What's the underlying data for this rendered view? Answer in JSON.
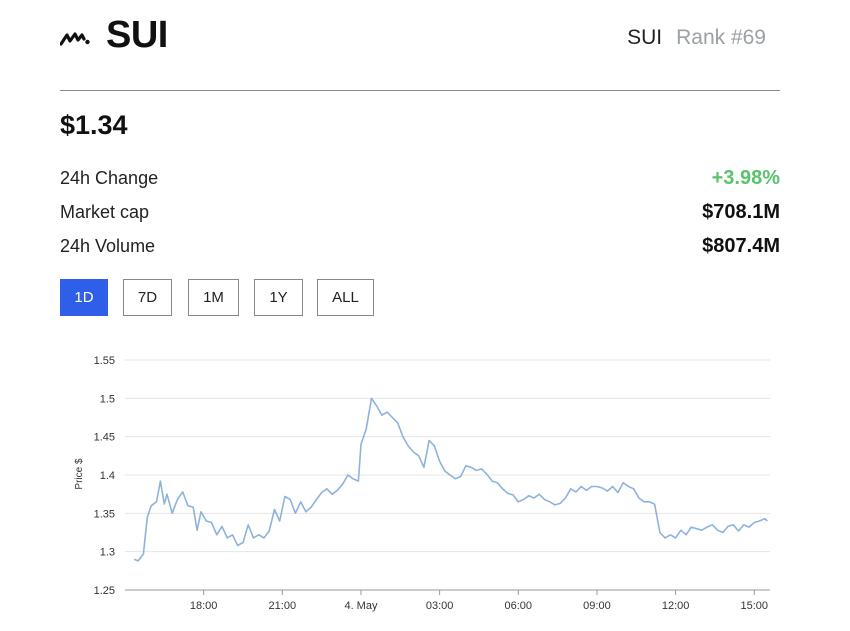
{
  "header": {
    "logo_icon": "sui-logo-icon",
    "name": "SUI",
    "symbol": "SUI",
    "rank": "Rank #69"
  },
  "price": "$1.34",
  "stats": [
    {
      "label": "24h Change",
      "value": "+3.98%",
      "color": "#5ac26b"
    },
    {
      "label": "Market cap",
      "value": "$708.1M"
    },
    {
      "label": "24h Volume",
      "value": "$807.4M"
    }
  ],
  "ranges": [
    "1D",
    "7D",
    "1M",
    "1Y",
    "ALL"
  ],
  "active_range": "1D",
  "accent_color": "#2f5fe8",
  "chart_data": {
    "type": "line",
    "ylabel": "Price $",
    "ylim": [
      1.25,
      1.55
    ],
    "yticks": [
      "1.25",
      "1.3",
      "1.35",
      "1.4",
      "1.45",
      "1.5",
      "1.55"
    ],
    "xlim": [
      15.0,
      39.6
    ],
    "xticks": [
      {
        "x": 18,
        "label": "18:00"
      },
      {
        "x": 21,
        "label": "21:00"
      },
      {
        "x": 24,
        "label": "4. May"
      },
      {
        "x": 27,
        "label": "03:00"
      },
      {
        "x": 30,
        "label": "06:00"
      },
      {
        "x": 33,
        "label": "09:00"
      },
      {
        "x": 36,
        "label": "12:00"
      },
      {
        "x": 39,
        "label": "15:00"
      }
    ],
    "grid": true,
    "line_color": "#8db3dd",
    "series": [
      {
        "x": [
          15.35,
          15.5,
          15.7,
          15.85,
          16.0,
          16.2,
          16.35,
          16.5,
          16.6,
          16.8,
          17.0,
          17.2,
          17.4,
          17.6,
          17.75,
          17.9,
          18.1,
          18.3,
          18.5,
          18.7,
          18.9,
          19.1,
          19.3,
          19.5,
          19.7,
          19.9,
          20.1,
          20.3,
          20.5,
          20.7,
          20.9,
          21.1,
          21.3,
          21.5,
          21.7,
          21.9,
          22.1,
          22.3,
          22.5,
          22.7,
          22.9,
          23.1,
          23.3,
          23.5,
          23.7,
          23.9,
          24.0,
          24.2,
          24.4,
          24.6,
          24.8,
          25.0,
          25.2,
          25.4,
          25.6,
          25.8,
          26.0,
          26.2,
          26.4,
          26.6,
          26.8,
          27.0,
          27.2,
          27.4,
          27.6,
          27.8,
          28.0,
          28.2,
          28.4,
          28.6,
          28.8,
          29.0,
          29.2,
          29.4,
          29.6,
          29.8,
          30.0,
          30.2,
          30.4,
          30.6,
          30.8,
          31.0,
          31.2,
          31.4,
          31.6,
          31.8,
          32.0,
          32.2,
          32.4,
          32.6,
          32.8,
          33.0,
          33.2,
          33.4,
          33.6,
          33.8,
          34.0,
          34.2,
          34.4,
          34.6,
          34.8,
          35.0,
          35.2,
          35.4,
          35.6,
          35.8,
          36.0,
          36.2,
          36.4,
          36.6,
          36.8,
          37.0,
          37.2,
          37.4,
          37.6,
          37.8,
          38.0,
          38.2,
          38.4,
          38.6,
          38.8,
          39.0,
          39.2,
          39.4,
          39.5
        ],
        "values": [
          1.29,
          1.288,
          1.297,
          1.345,
          1.36,
          1.365,
          1.392,
          1.362,
          1.375,
          1.35,
          1.368,
          1.378,
          1.36,
          1.358,
          1.328,
          1.352,
          1.34,
          1.338,
          1.322,
          1.333,
          1.318,
          1.322,
          1.308,
          1.312,
          1.335,
          1.318,
          1.322,
          1.318,
          1.327,
          1.355,
          1.34,
          1.372,
          1.368,
          1.35,
          1.365,
          1.352,
          1.358,
          1.368,
          1.377,
          1.382,
          1.375,
          1.38,
          1.388,
          1.4,
          1.395,
          1.392,
          1.44,
          1.46,
          1.5,
          1.49,
          1.478,
          1.482,
          1.475,
          1.468,
          1.45,
          1.438,
          1.43,
          1.425,
          1.41,
          1.445,
          1.438,
          1.418,
          1.405,
          1.4,
          1.395,
          1.398,
          1.412,
          1.41,
          1.406,
          1.408,
          1.401,
          1.392,
          1.39,
          1.382,
          1.376,
          1.374,
          1.365,
          1.368,
          1.373,
          1.37,
          1.375,
          1.368,
          1.365,
          1.361,
          1.363,
          1.37,
          1.382,
          1.378,
          1.385,
          1.38,
          1.385,
          1.385,
          1.383,
          1.379,
          1.385,
          1.377,
          1.39,
          1.385,
          1.382,
          1.37,
          1.365,
          1.365,
          1.362,
          1.325,
          1.318,
          1.322,
          1.318,
          1.328,
          1.322,
          1.332,
          1.33,
          1.328,
          1.332,
          1.335,
          1.328,
          1.325,
          1.333,
          1.335,
          1.327,
          1.335,
          1.332,
          1.338,
          1.34,
          1.343,
          1.34
        ]
      }
    ]
  }
}
